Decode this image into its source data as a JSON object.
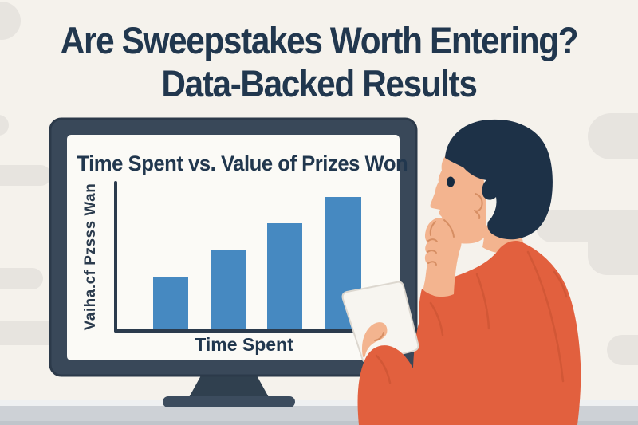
{
  "header": {
    "title_line1": "Are Sweepstakes Worth Entering?",
    "title_line2": "Data-Backed Results"
  },
  "chart_data": {
    "type": "bar",
    "title": "Time Spent vs. Value of Prizes Won",
    "xlabel": "Time Spent",
    "ylabel": "Vaiha.cf Pzsss Wan",
    "categories": [
      "",
      "",
      "",
      ""
    ],
    "values_percent_of_max": [
      40,
      60,
      80,
      100
    ],
    "ylim": [
      0,
      100
    ],
    "grid": false,
    "legend": false,
    "tick_labels_visible": false,
    "bar_color": "#4689c1",
    "axis_color": "#2b3b4d"
  },
  "illustration": {
    "monitor": "desktop monitor displaying the bar chart",
    "person": "man seen from behind in orange shirt, hand on chin, thinking",
    "tablet": "white tablet held in left hand",
    "desk": "gray desk surface along bottom",
    "background_shapes": "light gray rounded blobs on cream background"
  },
  "colors": {
    "background": "#f5f2ec",
    "blob": "#e7e4df",
    "title_navy": "#21374e",
    "frame": "#394859",
    "frame_edge": "#2c3a4a",
    "screen": "#fbfaf6",
    "bar_blue": "#4689c1",
    "axis_navy": "#2b3b4d",
    "desk": "#cdd1d6",
    "desk_highlight": "#eef0f1",
    "desk_edge": "#c0c5cb",
    "skin": "#f3b48f",
    "skin_line": "#d68e63",
    "hair": "#1d3147",
    "eye": "#152a40",
    "shirt": "#e2603e",
    "shirt_crease": "#c24d2d",
    "tablet": "#f7f5f0",
    "tablet_edge": "#dcd7cf",
    "stand": "#30404f",
    "stand_base": "#3c4c5e"
  }
}
